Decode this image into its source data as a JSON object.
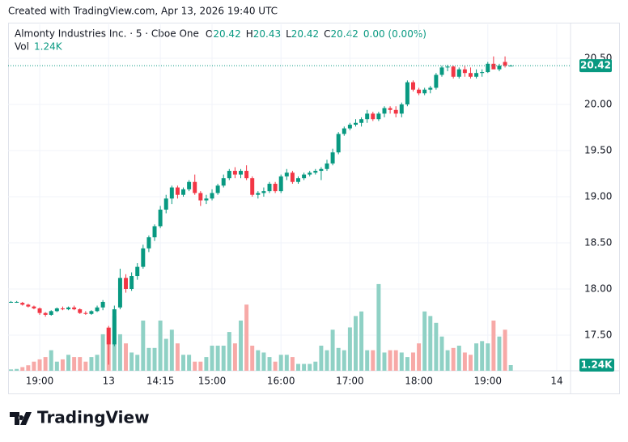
{
  "chart_data": {
    "type": "candlestick",
    "caption": "Created with TradingView.com, Apr 13, 2026 19:40 UTC",
    "title": "Almonty Industries Inc. · 5 · Cboe One",
    "ohlc_legend": [
      {
        "label": "O",
        "value": "20.42"
      },
      {
        "label": "H",
        "value": "20.43"
      },
      {
        "label": "L",
        "value": "20.42"
      },
      {
        "label": "C",
        "value": "20.42"
      }
    ],
    "change": "0.00 (0.00%)",
    "volume_legend": {
      "label": "Vol",
      "value": "1.24K"
    },
    "brand": "TradingView",
    "up_color": "#089981",
    "down_color": "#f23645",
    "volume_up_color": "#8fd1c5",
    "volume_down_color": "#f7a9a7",
    "last_price": 20.42,
    "last_volume": {
      "value": 1240,
      "label": "1.24K"
    },
    "ylim": [
      17.114,
      20.868
    ],
    "volume_lim": [
      0,
      22000
    ],
    "xlim": [
      -0.5,
      97.4
    ],
    "yticks": [
      {
        "value": 20.5,
        "label": "20.50"
      },
      {
        "value": 20.0,
        "label": "20.00"
      },
      {
        "value": 19.5,
        "label": "19.50"
      },
      {
        "value": 19.0,
        "label": "19.00"
      },
      {
        "value": 18.5,
        "label": "18.50"
      },
      {
        "value": 18.0,
        "label": "18.00"
      },
      {
        "value": 17.5,
        "label": "17.50"
      }
    ],
    "xticks": [
      {
        "value": 5,
        "label": "19:00"
      },
      {
        "value": 17,
        "label": "13"
      },
      {
        "value": 26,
        "label": "14:15"
      },
      {
        "value": 35,
        "label": "15:00"
      },
      {
        "value": 47,
        "label": "16:00"
      },
      {
        "value": 59,
        "label": "17:00"
      },
      {
        "value": 71,
        "label": "18:00"
      },
      {
        "value": 83,
        "label": "19:00"
      },
      {
        "value": 95,
        "label": "14"
      }
    ],
    "open": [
      17.86,
      17.86,
      17.85,
      17.83,
      17.81,
      17.79,
      17.74,
      17.72,
      17.76,
      17.79,
      17.78,
      17.8,
      17.78,
      17.74,
      17.73,
      17.76,
      17.8,
      17.58,
      17.4,
      17.8,
      18.12,
      18.0,
      18.14,
      18.24,
      18.44,
      18.56,
      18.68,
      18.86,
      18.98,
      19.1,
      19.02,
      19.08,
      19.16,
      19.04,
      18.96,
      18.98,
      19.04,
      19.12,
      19.2,
      19.28,
      19.24,
      19.28,
      19.2,
      19.02,
      19.04,
      19.06,
      19.14,
      19.06,
      19.22,
      19.26,
      19.16,
      19.2,
      19.24,
      19.26,
      19.28,
      19.3,
      19.36,
      19.48,
      19.68,
      19.74,
      19.78,
      19.8,
      19.84,
      19.9,
      19.84,
      19.9,
      19.96,
      19.94,
      19.9,
      20.0,
      20.24,
      20.16,
      20.12,
      20.16,
      20.18,
      20.32,
      20.4,
      20.41,
      20.3,
      20.38,
      20.34,
      20.3,
      20.34,
      20.35,
      20.44,
      20.38,
      20.46,
      20.42
    ],
    "high": [
      17.87,
      17.87,
      17.86,
      17.84,
      17.82,
      17.8,
      17.75,
      17.77,
      17.8,
      17.81,
      17.81,
      17.82,
      17.79,
      17.76,
      17.77,
      17.82,
      17.88,
      17.6,
      17.82,
      18.22,
      18.16,
      18.18,
      18.28,
      18.48,
      18.58,
      18.7,
      18.9,
      19.02,
      19.12,
      19.12,
      19.1,
      19.18,
      19.24,
      19.06,
      19.02,
      19.08,
      19.14,
      19.24,
      19.3,
      19.32,
      19.3,
      19.34,
      19.22,
      19.06,
      19.1,
      19.16,
      19.16,
      19.24,
      19.3,
      19.28,
      19.22,
      19.26,
      19.28,
      19.3,
      19.32,
      19.4,
      19.52,
      19.7,
      19.76,
      19.8,
      19.84,
      19.86,
      19.94,
      19.92,
      19.92,
      19.98,
      19.98,
      19.98,
      20.02,
      20.26,
      20.26,
      20.18,
      20.18,
      20.2,
      20.34,
      20.42,
      20.43,
      20.42,
      20.4,
      20.42,
      20.4,
      20.38,
      20.38,
      20.46,
      20.52,
      20.44,
      20.52,
      20.43
    ],
    "low": [
      17.85,
      17.85,
      17.82,
      17.8,
      17.78,
      17.72,
      17.7,
      17.71,
      17.75,
      17.77,
      17.77,
      17.77,
      17.73,
      17.72,
      17.72,
      17.75,
      17.77,
      17.18,
      17.38,
      17.78,
      17.96,
      17.98,
      18.1,
      18.22,
      18.4,
      18.52,
      18.66,
      18.82,
      18.92,
      18.98,
      19.0,
      19.06,
      19.02,
      18.9,
      18.92,
      18.96,
      19.02,
      19.1,
      19.18,
      19.2,
      19.2,
      19.18,
      19.0,
      18.98,
      19.0,
      19.04,
      19.04,
      19.04,
      19.18,
      19.14,
      19.14,
      19.18,
      19.22,
      19.24,
      19.18,
      19.28,
      19.34,
      19.46,
      19.66,
      19.72,
      19.76,
      19.76,
      19.8,
      19.82,
      19.82,
      19.86,
      19.9,
      19.86,
      19.86,
      19.98,
      20.14,
      20.1,
      20.1,
      20.12,
      20.16,
      20.3,
      20.36,
      20.28,
      20.28,
      20.3,
      20.28,
      20.28,
      20.3,
      20.34,
      20.4,
      20.36,
      20.4,
      20.42
    ],
    "close": [
      17.86,
      17.86,
      17.83,
      17.81,
      17.79,
      17.74,
      17.72,
      17.76,
      17.79,
      17.78,
      17.8,
      17.78,
      17.74,
      17.73,
      17.76,
      17.8,
      17.86,
      17.4,
      17.78,
      18.12,
      18.0,
      18.14,
      18.24,
      18.44,
      18.56,
      18.68,
      18.86,
      18.98,
      19.1,
      19.02,
      19.08,
      19.16,
      19.04,
      18.96,
      18.98,
      19.04,
      19.12,
      19.2,
      19.28,
      19.24,
      19.28,
      19.2,
      19.02,
      19.04,
      19.06,
      19.14,
      19.06,
      19.22,
      19.26,
      19.16,
      19.2,
      19.24,
      19.26,
      19.28,
      19.3,
      19.36,
      19.48,
      19.68,
      19.74,
      19.78,
      19.8,
      19.84,
      19.9,
      19.84,
      19.9,
      19.96,
      19.94,
      19.9,
      20.0,
      20.24,
      20.16,
      20.12,
      20.16,
      20.18,
      20.32,
      20.4,
      20.41,
      20.3,
      20.38,
      20.34,
      20.3,
      20.34,
      20.35,
      20.44,
      20.38,
      20.42,
      20.42,
      20.42
    ],
    "volume": [
      300,
      400,
      800,
      1200,
      2000,
      2500,
      3000,
      4500,
      2000,
      2500,
      3500,
      3000,
      3000,
      2000,
      3000,
      3500,
      8000,
      9500,
      12000,
      8000,
      6000,
      4000,
      3500,
      11000,
      5000,
      5000,
      11000,
      7000,
      9000,
      6000,
      3500,
      3500,
      2000,
      2000,
      3000,
      5500,
      5500,
      5500,
      8500,
      6000,
      11000,
      14500,
      5500,
      4500,
      4000,
      3000,
      2000,
      3500,
      3500,
      3000,
      1500,
      1500,
      1500,
      2000,
      5500,
      4500,
      9000,
      5000,
      4500,
      9500,
      12000,
      13000,
      4500,
      4500,
      19000,
      4000,
      4500,
      4500,
      4000,
      3000,
      4000,
      6000,
      13000,
      12000,
      10500,
      7500,
      4500,
      5000,
      5500,
      4000,
      3500,
      6000,
      6500,
      6000,
      11000,
      7500,
      9000,
      1240
    ]
  }
}
